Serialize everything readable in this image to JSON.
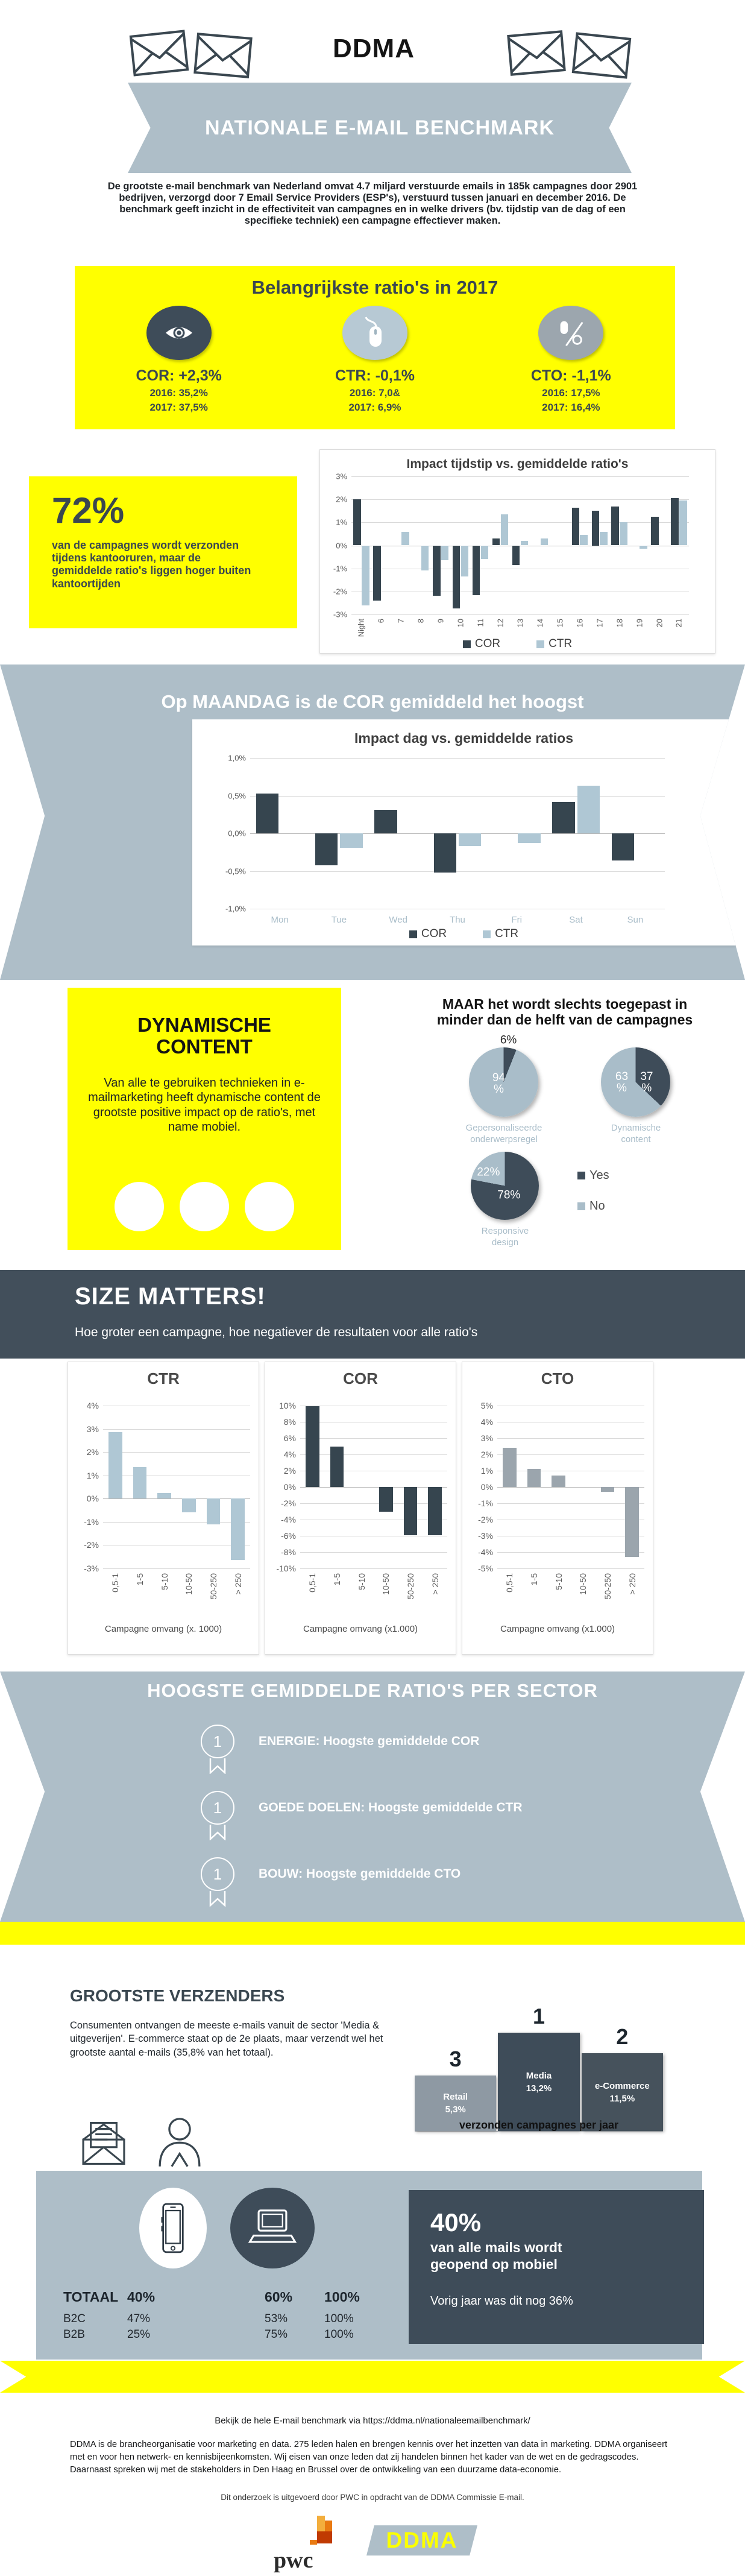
{
  "header": {
    "logo": "DDMA",
    "banner_title": "NATIONALE E-MAIL BENCHMARK",
    "intro": "De grootste e-mail benchmark van Nederland omvat 4.7 miljard verstuurde emails in 185k campagnes door 2901 bedrijven, verzorgd door 7 Email Service Providers (ESP's), verstuurd tussen januari en december 2016. De benchmark geeft inzicht in de effectiviteit van campagnes en in welke drivers (bv. tijdstip van de dag of een specifieke techniek) een campagne effectiever maken."
  },
  "ratios2017": {
    "title": "Belangrijkste ratio's in 2017",
    "items": [
      {
        "icon": "eye-icon",
        "circle_color": "#3E4C59",
        "label": "COR: +2,3%",
        "year1": "2016: 35,2%",
        "year2": "2017: 37,5%"
      },
      {
        "icon": "mouse-icon",
        "circle_color": "#B7C9D4",
        "label": "CTR: -0,1%",
        "year1": "2016: 7,0&",
        "year2": "2017: 6,9%"
      },
      {
        "icon": "mouse-percent-icon",
        "circle_color": "#9CA6AE",
        "label": "CTO: -1,1%",
        "year1": "2016: 17,5%",
        "year2": "2017: 16,4%"
      }
    ]
  },
  "office_hours": {
    "stat": "72%",
    "text": "van de campagnes wordt verzonden tijdens kantooruren, maar de gemiddelde ratio's liggen hoger buiten kantoortijden"
  },
  "monday": {
    "title": "Op MAANDAG is de COR gemiddeld het hoogst"
  },
  "dynamic_content": {
    "title": "DYNAMISCHE\nCONTENT",
    "text": "Van alle te gebruiken technieken in e-mailmarketing heeft dynamische content de grootste positive impact op de ratio's, met name mobiel."
  },
  "size_matters": {
    "title": "SIZE MATTERS!",
    "subtitle": "Hoe groter een campagne, hoe negatiever de resultaten voor alle ratio's"
  },
  "sector": {
    "title": "HOOGSTE GEMIDDELDE RATIO'S PER SECTOR",
    "items": [
      {
        "rank": "1",
        "label": "ENERGIE: Hoogste gemiddelde COR"
      },
      {
        "rank": "1",
        "label": "GOEDE DOELEN: Hoogste gemiddelde CTR"
      },
      {
        "rank": "1",
        "label": "BOUW: Hoogste gemiddelde CTO"
      }
    ]
  },
  "senders": {
    "title": "GROOTSTE VERZENDERS",
    "text": "Consumenten ontvangen de meeste e-mails vanuit de sector 'Media & uitgeverijen'. E-commerce staat op de 2e plaats, maar verzendt wel het grootste aantal e-mails (35,8% van het totaal)."
  },
  "mobile": {
    "stat": "40%",
    "stat_text": "van alle mails wordt geopend op mobiel",
    "note": "Vorig jaar was dit nog 36%",
    "table": {
      "rows": [
        {
          "label": "TOTAAL",
          "mobile": "40%",
          "desktop": "60%",
          "total": "100%"
        },
        {
          "label": "B2C",
          "mobile": "47%",
          "desktop": "53%",
          "total": "100%"
        },
        {
          "label": "B2B",
          "mobile": "25%",
          "desktop": "75%",
          "total": "100%"
        }
      ]
    }
  },
  "footer": {
    "link_line": "Bekijk de hele E-mail benchmark via https://ddma.nl/nationaleemailbenchmark/",
    "about": "DDMA is de brancheorganisatie voor marketing en data. 275 leden halen en brengen kennis over het inzetten van data in marketing. DDMA organiseert met en voor hen netwerk- en kennisbijeenkomsten. Wij eisen van onze leden dat zij handelen binnen het kader van de wet en de gedragscodes. Daarnaast spreken wij met de stakeholders in Den Haag en Brussel over de ontwikkeling van een duurzame data-economie.",
    "credit": "Dit onderzoek is uitgevoerd door PWC in opdracht van de DDMA Commissie E-mail.",
    "pwc": "pwc",
    "ddma": "DDMA"
  },
  "icons": [
    "envelope-icon",
    "eye-icon",
    "mouse-icon",
    "mouse-percent-icon",
    "medal-icon",
    "open-envelope-icon",
    "person-icon",
    "phone-icon",
    "laptop-icon",
    "pwc-logo",
    "ddma-logo"
  ],
  "chart_data": {
    "hours": {
      "type": "bar",
      "title": "Impact tijdstip vs. gemiddelde ratio's",
      "categories": [
        "Night",
        "6",
        "7",
        "8",
        "9",
        "10",
        "11",
        "12",
        "13",
        "14",
        "15",
        "16",
        "17",
        "18",
        "19",
        "20",
        "21"
      ],
      "series": [
        {
          "name": "COR",
          "color": "#36454F",
          "values": [
            2.0,
            -2.4,
            0,
            0,
            -2.2,
            -2.75,
            -2.15,
            0.3,
            -0.85,
            0,
            0,
            1.65,
            1.5,
            1.7,
            0,
            1.25,
            2.05
          ]
        },
        {
          "name": "CTR",
          "color": "#AFC7D4",
          "values": [
            -2.6,
            0,
            0.6,
            -1.1,
            -0.65,
            -1.35,
            -0.6,
            1.35,
            0.2,
            0.3,
            0,
            0.45,
            0.6,
            1.0,
            -0.15,
            0,
            1.95
          ]
        }
      ],
      "ylim": [
        -3,
        3
      ],
      "yticks": [
        {
          "v": 3,
          "label": "3%"
        },
        {
          "v": 2,
          "label": "2%"
        },
        {
          "v": 1,
          "label": "1%"
        },
        {
          "v": 0,
          "label": "0%"
        },
        {
          "v": -1,
          "label": "-1%"
        },
        {
          "v": -2,
          "label": "-2%"
        },
        {
          "v": -3,
          "label": "-3%"
        }
      ],
      "rotate_labels": true,
      "legend_position": "bottom"
    },
    "days": {
      "type": "bar",
      "title": "Impact dag vs. gemiddelde ratios",
      "categories": [
        "Mon",
        "Tue",
        "Wed",
        "Thu",
        "Fri",
        "Sat",
        "Sun"
      ],
      "series": [
        {
          "name": "COR",
          "color": "#36454F",
          "values": [
            0.53,
            -0.42,
            0.31,
            -0.52,
            0,
            0.42,
            -0.36
          ]
        },
        {
          "name": "CTR",
          "color": "#AFC7D4",
          "values": [
            0,
            -0.19,
            0,
            -0.17,
            -0.13,
            0.63,
            0
          ]
        }
      ],
      "ylim": [
        -1,
        1
      ],
      "yticks": [
        {
          "v": 1,
          "label": "1,0%"
        },
        {
          "v": 0.5,
          "label": "0,5%"
        },
        {
          "v": 0,
          "label": "0,0%"
        },
        {
          "v": -0.5,
          "label": "-0,5%"
        },
        {
          "v": -1,
          "label": "-1,0%"
        }
      ],
      "rotate_labels": false,
      "legend_position": "bottom"
    },
    "size_ctr": {
      "type": "bar",
      "title": "CTR",
      "categories": [
        "0,5-1",
        "1-5",
        "5-10",
        "10-50",
        "50-250",
        "> 250"
      ],
      "series": [
        {
          "name": "CTR",
          "color": "#AFC7D4",
          "values": [
            2.85,
            1.35,
            0.25,
            -0.6,
            -1.1,
            -2.65
          ]
        }
      ],
      "ylim": [
        -3,
        4
      ],
      "yticks": [
        {
          "v": 4,
          "label": "4%"
        },
        {
          "v": 3,
          "label": "3%"
        },
        {
          "v": 2,
          "label": "2%"
        },
        {
          "v": 1,
          "label": "1%"
        },
        {
          "v": 0,
          "label": "0%"
        },
        {
          "v": -1,
          "label": "-1%"
        },
        {
          "v": -2,
          "label": "-2%"
        },
        {
          "v": -3,
          "label": "-3%"
        }
      ],
      "rotate_labels": true,
      "xlabel": "Campagne omvang (x. 1000)"
    },
    "size_cor": {
      "type": "bar",
      "title": "COR",
      "categories": [
        "0,5-1",
        "1-5",
        "5-10",
        "10-50",
        "50-250",
        "> 250"
      ],
      "series": [
        {
          "name": "COR",
          "color": "#36454F",
          "values": [
            9.9,
            5.0,
            0,
            -3.0,
            -5.9,
            -5.9
          ]
        }
      ],
      "ylim": [
        -10,
        10
      ],
      "yticks": [
        {
          "v": 10,
          "label": "10%"
        },
        {
          "v": 8,
          "label": "8%"
        },
        {
          "v": 6,
          "label": "6%"
        },
        {
          "v": 4,
          "label": "4%"
        },
        {
          "v": 2,
          "label": "2%"
        },
        {
          "v": 0,
          "label": "0%"
        },
        {
          "v": -2,
          "label": "-2%"
        },
        {
          "v": -4,
          "label": "-4%"
        },
        {
          "v": -6,
          "label": "-6%"
        },
        {
          "v": -8,
          "label": "-8%"
        },
        {
          "v": -10,
          "label": "-10%"
        }
      ],
      "rotate_labels": true,
      "xlabel": "Campagne omvang (x1.000)"
    },
    "size_cto": {
      "type": "bar",
      "title": "CTO",
      "categories": [
        "0,5-1",
        "1-5",
        "5-10",
        "10-50",
        "50-250",
        "> 250"
      ],
      "series": [
        {
          "name": "CTO",
          "color": "#9BA5AD",
          "values": [
            2.4,
            1.1,
            0.7,
            0,
            -0.3,
            -4.3
          ]
        }
      ],
      "ylim": [
        -5,
        5
      ],
      "yticks": [
        {
          "v": 5,
          "label": "5%"
        },
        {
          "v": 4,
          "label": "4%"
        },
        {
          "v": 3,
          "label": "3%"
        },
        {
          "v": 2,
          "label": "2%"
        },
        {
          "v": 1,
          "label": "1%"
        },
        {
          "v": 0,
          "label": "0%"
        },
        {
          "v": -1,
          "label": "-1%"
        },
        {
          "v": -2,
          "label": "-2%"
        },
        {
          "v": -3,
          "label": "-3%"
        },
        {
          "v": -4,
          "label": "-4%"
        },
        {
          "v": -5,
          "label": "-5%"
        }
      ],
      "rotate_labels": true,
      "xlabel": "Campagne omvang (x1.000)"
    },
    "pies": {
      "type": "pie",
      "title": "MAAR het wordt slechts toegepast in minder dan de helft van de campagnes",
      "colors": {
        "yes": "#3E4C59",
        "no": "#A9BDC9"
      },
      "legend": [
        {
          "label": "Yes",
          "color": "#3E4C59"
        },
        {
          "label": "No",
          "color": "#A9BDC9"
        }
      ],
      "pies": [
        {
          "label": "Gepersonaliseerde\nonderwerpsregel",
          "yes": 6,
          "no": 94,
          "yes_label": "6%",
          "no_label": "94\n%"
        },
        {
          "label": "Dynamische\ncontent",
          "yes": 37,
          "no": 63,
          "yes_label": "37\n%",
          "no_label": "63\n%"
        },
        {
          "label": "Responsive\ndesign",
          "yes": 78,
          "no": 22,
          "yes_label": "78%",
          "no_label": "22%"
        }
      ]
    },
    "podium": {
      "type": "bar",
      "caption": "verzonden campagnes per jaar",
      "bars": [
        {
          "rank": "3",
          "label": "Retail",
          "value": "5,3%",
          "color": "#8E99A3",
          "height": 92
        },
        {
          "rank": "1",
          "label": "Media",
          "value": "13,2%",
          "color": "#3E4C59",
          "height": 163
        },
        {
          "rank": "2",
          "label": "e-Commerce",
          "value": "11,5%",
          "color": "#46525C",
          "height": 129
        }
      ]
    }
  }
}
